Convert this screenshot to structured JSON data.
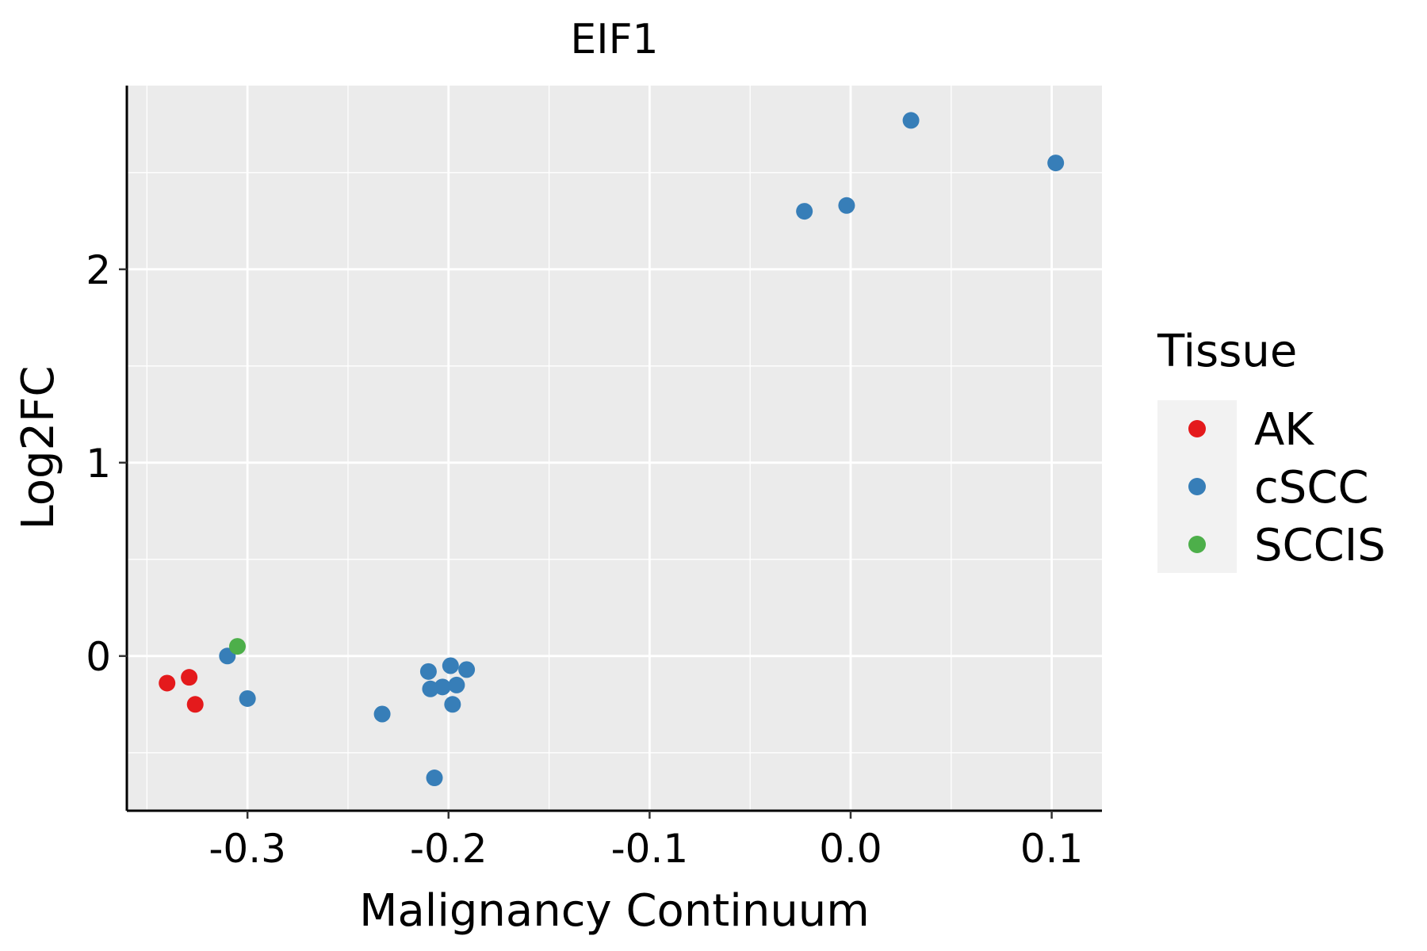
{
  "chart_data": {
    "type": "scatter",
    "title": "EIF1",
    "xlabel": "Malignancy Continuum",
    "ylabel": "Log2FC",
    "xlim": [
      -0.36,
      0.125
    ],
    "ylim": [
      -0.8,
      2.95
    ],
    "x_ticks": [
      -0.3,
      -0.2,
      -0.1,
      0.0,
      0.1
    ],
    "x_tick_labels": [
      "-0.3",
      "-0.2",
      "-0.1",
      "0.0",
      "0.1"
    ],
    "y_ticks": [
      0,
      1,
      2
    ],
    "y_tick_labels": [
      "0",
      "1",
      "2"
    ],
    "grid": true,
    "legend": {
      "title": "Tissue",
      "placement": "right"
    },
    "series": [
      {
        "name": "AK",
        "color": "#E41A1C",
        "points": [
          [
            -0.34,
            -0.14
          ],
          [
            -0.329,
            -0.11
          ],
          [
            -0.326,
            -0.25
          ]
        ]
      },
      {
        "name": "cSCC",
        "color": "#377EB8",
        "points": [
          [
            -0.31,
            0.0
          ],
          [
            -0.3,
            -0.22
          ],
          [
            -0.233,
            -0.3
          ],
          [
            -0.21,
            -0.08
          ],
          [
            -0.209,
            -0.17
          ],
          [
            -0.203,
            -0.16
          ],
          [
            -0.199,
            -0.05
          ],
          [
            -0.198,
            -0.25
          ],
          [
            -0.196,
            -0.15
          ],
          [
            -0.191,
            -0.07
          ],
          [
            -0.207,
            -0.63
          ],
          [
            -0.023,
            2.3
          ],
          [
            -0.002,
            2.33
          ],
          [
            0.03,
            2.77
          ],
          [
            0.102,
            2.55
          ]
        ]
      },
      {
        "name": "SCCIS",
        "color": "#4DAF4A",
        "points": [
          [
            -0.305,
            0.05
          ]
        ]
      }
    ]
  }
}
